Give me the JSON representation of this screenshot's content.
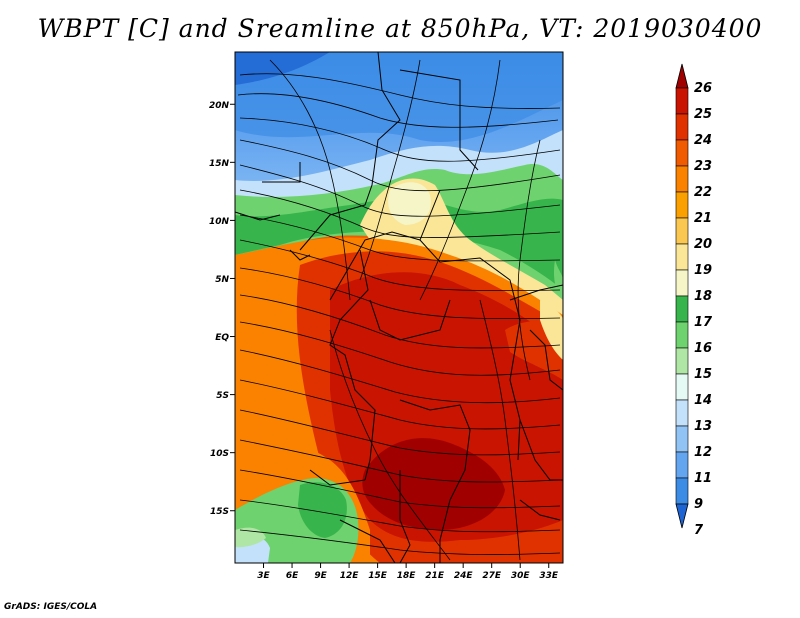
{
  "title": "WBPT [C] and Sreamline at 850hPa, VT: 2019030400",
  "credit": "GrADS: IGES/COLA",
  "lat_labels": [
    "20N",
    "15N",
    "10N",
    "5N",
    "EQ",
    "5S",
    "10S",
    "15S"
  ],
  "lat_values": [
    20,
    15,
    10,
    5,
    0,
    -5,
    -10,
    -15
  ],
  "lon_labels": [
    "3E",
    "6E",
    "9E",
    "12E",
    "15E",
    "18E",
    "21E",
    "24E",
    "27E",
    "30E",
    "33E"
  ],
  "lon_values": [
    3,
    6,
    9,
    12,
    15,
    18,
    21,
    24,
    27,
    30,
    33
  ],
  "extent": {
    "lon_min": 0,
    "lon_max": 34.5,
    "lat_min": -19.5,
    "lat_max": 24.5
  },
  "colorbar": {
    "labels": [
      "26",
      "25",
      "24",
      "23",
      "22",
      "21",
      "20",
      "19",
      "18",
      "17",
      "16",
      "15",
      "14",
      "13",
      "12",
      "11",
      "9",
      "7"
    ],
    "colors": [
      "#a00000",
      "#c81400",
      "#e03200",
      "#f05a00",
      "#fa8200",
      "#faa000",
      "#fac850",
      "#fae696",
      "#f5f5c8",
      "#37b44b",
      "#6ed26e",
      "#afe6a5",
      "#e6faf5",
      "#c3e1fa",
      "#91c3f5",
      "#64a5f0",
      "#3c8ce6",
      "#1e64d2"
    ]
  },
  "map_field": "Wet-bulb potential temperature shaded with streamlines and country borders"
}
